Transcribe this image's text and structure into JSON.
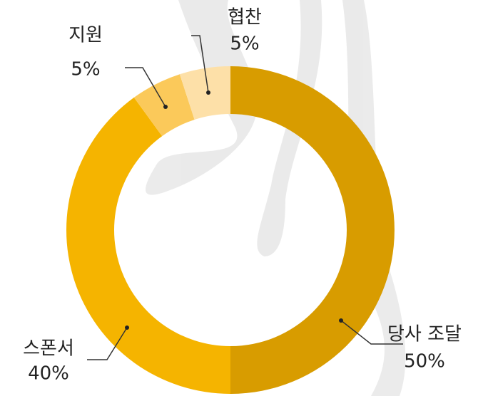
{
  "chart_data": {
    "type": "donut",
    "categories": [
      "당사 조달",
      "스폰서",
      "지원",
      "협찬"
    ],
    "values": [
      50,
      40,
      5,
      5
    ],
    "value_labels": [
      "50%",
      "40%",
      "5%",
      "5%"
    ],
    "colors": [
      "#d89c00",
      "#f5b400",
      "#fbc95a",
      "#fde0a8"
    ]
  }
}
